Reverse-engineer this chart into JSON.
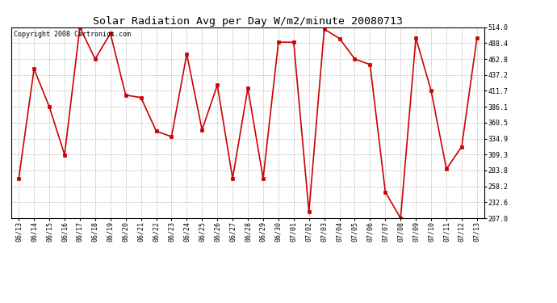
{
  "title": "Solar Radiation Avg per Day W/m2/minute 20080713",
  "copyright": "Copyright 2008 Cartronics.com",
  "x_labels": [
    "06/13",
    "06/14",
    "06/15",
    "06/16",
    "06/17",
    "06/18",
    "06/19",
    "06/20",
    "06/21",
    "06/22",
    "06/23",
    "06/24",
    "06/25",
    "06/26",
    "06/27",
    "06/28",
    "06/29",
    "06/30",
    "07/01",
    "07/02",
    "07/03",
    "07/04",
    "07/05",
    "07/06",
    "07/07",
    "07/08",
    "07/09",
    "07/10",
    "07/11",
    "07/12",
    "07/13"
  ],
  "y_values": [
    271,
    447,
    386,
    309,
    514,
    463,
    504,
    405,
    401,
    347,
    338,
    471,
    349,
    421,
    271,
    416,
    271,
    490,
    490,
    217,
    511,
    496,
    463,
    454,
    249,
    207,
    497,
    412,
    286,
    322,
    497
  ],
  "y_min": 207.0,
  "y_max": 514.0,
  "y_ticks": [
    207.0,
    232.6,
    258.2,
    283.8,
    309.3,
    334.9,
    360.5,
    386.1,
    411.7,
    437.2,
    462.8,
    488.4,
    514.0
  ],
  "line_color": "#cc0000",
  "marker_color": "#cc0000",
  "bg_color": "#ffffff",
  "grid_color": "#bbbbbb",
  "title_fontsize": 9.5,
  "tick_fontsize": 6.0,
  "copyright_fontsize": 6.0
}
